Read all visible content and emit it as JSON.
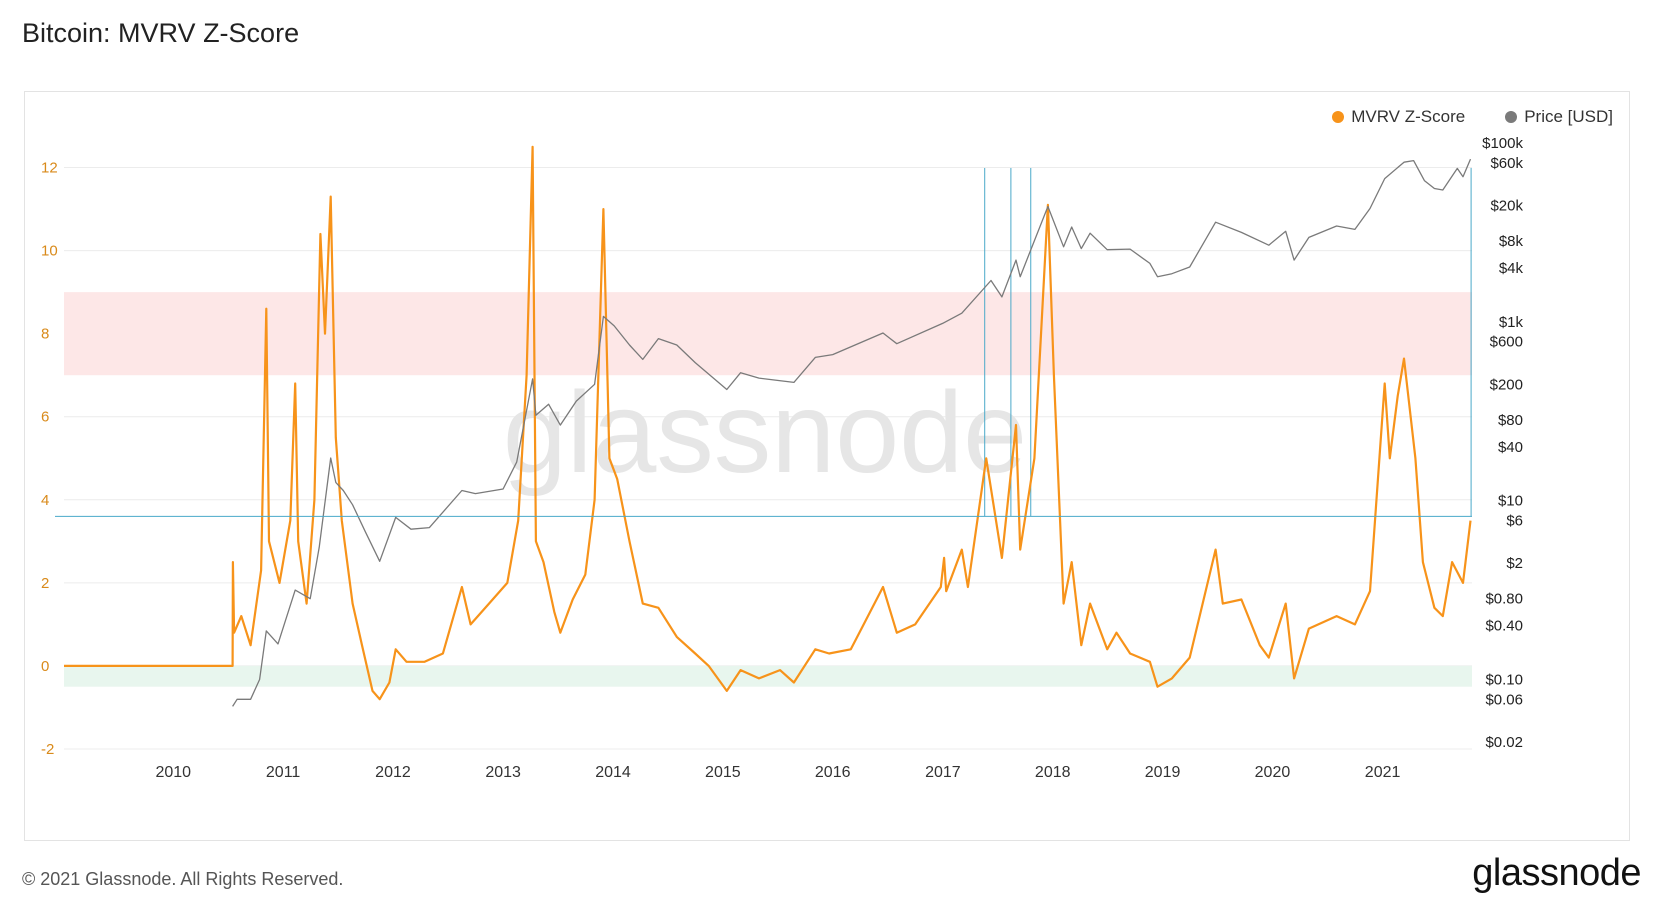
{
  "title": "Bitcoin: MVRV Z-Score",
  "footer": "© 2021 Glassnode. All Rights Reserved.",
  "brand": "glassnode",
  "watermark": "glassnode",
  "colors": {
    "zscore": "#f7931a",
    "price": "#7a7a7a",
    "upper_band": "#fde7e7",
    "lower_band": "#e8f6ee",
    "marker": "#4aa9c9",
    "grid": "#ececec"
  },
  "chart_data": {
    "type": "line",
    "title": "Bitcoin: MVRV Z-Score",
    "legend": {
      "placement": "top-right",
      "entries": [
        {
          "label": "MVRV Z-Score",
          "color": "#f7931a"
        },
        {
          "label": "Price [USD]",
          "color": "#7a7a7a"
        }
      ]
    },
    "x_axis": {
      "type": "date",
      "range": [
        "2009-01-03",
        "2021-10-25"
      ],
      "ticks": [
        "2010",
        "2011",
        "2012",
        "2013",
        "2014",
        "2015",
        "2016",
        "2017",
        "2018",
        "2019",
        "2020",
        "2021"
      ]
    },
    "y_left": {
      "ylim": [
        -2,
        13
      ],
      "ticks": [
        "-2",
        "0",
        "2",
        "4",
        "6",
        "8",
        "10",
        "12"
      ]
    },
    "y_right": {
      "scale": "log",
      "ylim": [
        0.015,
        200000
      ],
      "ticks": [
        {
          "label": "$0.02",
          "value": 0.02
        },
        {
          "label": "$0.06",
          "value": 0.06
        },
        {
          "label": "$0.10",
          "value": 0.1
        },
        {
          "label": "$0.40",
          "value": 0.4
        },
        {
          "label": "$0.80",
          "value": 0.8
        },
        {
          "label": "$2",
          "value": 2
        },
        {
          "label": "$6",
          "value": 6
        },
        {
          "label": "$10",
          "value": 10
        },
        {
          "label": "$40",
          "value": 40
        },
        {
          "label": "$80",
          "value": 80
        },
        {
          "label": "$200",
          "value": 200
        },
        {
          "label": "$600",
          "value": 600
        },
        {
          "label": "$1k",
          "value": 1000
        },
        {
          "label": "$4k",
          "value": 4000
        },
        {
          "label": "$8k",
          "value": 8000
        },
        {
          "label": "$20k",
          "value": 20000
        },
        {
          "label": "$60k",
          "value": 60000
        },
        {
          "label": "$100k",
          "value": 100000
        }
      ]
    },
    "bands": [
      {
        "from": 7,
        "to": 9,
        "zone": "upper"
      },
      {
        "from": -0.5,
        "to": 0,
        "zone": "lower"
      }
    ],
    "reference_line": {
      "y": 3.6
    },
    "marker_lines": [
      "2017-05-20",
      "2017-08-15",
      "2017-10-20",
      "2021-10-22"
    ],
    "series": [
      {
        "name": "MVRV Z-Score",
        "axis": "left",
        "color": "#f7931a",
        "points": [
          [
            "2009-01-03",
            0
          ],
          [
            "2010-07-17",
            0
          ],
          [
            "2010-07-18",
            2.5
          ],
          [
            "2010-07-22",
            0.8
          ],
          [
            "2010-08-15",
            1.2
          ],
          [
            "2010-09-15",
            0.5
          ],
          [
            "2010-10-20",
            2.3
          ],
          [
            "2010-11-06",
            8.6
          ],
          [
            "2010-11-15",
            3.0
          ],
          [
            "2010-12-20",
            2.0
          ],
          [
            "2011-01-25",
            3.5
          ],
          [
            "2011-02-10",
            6.8
          ],
          [
            "2011-02-20",
            3.0
          ],
          [
            "2011-03-20",
            1.5
          ],
          [
            "2011-04-15",
            4.0
          ],
          [
            "2011-05-05",
            10.4
          ],
          [
            "2011-05-20",
            8.0
          ],
          [
            "2011-06-08",
            11.3
          ],
          [
            "2011-06-25",
            5.5
          ],
          [
            "2011-07-15",
            3.5
          ],
          [
            "2011-08-20",
            1.5
          ],
          [
            "2011-09-20",
            0.5
          ],
          [
            "2011-10-25",
            -0.6
          ],
          [
            "2011-11-18",
            -0.8
          ],
          [
            "2011-12-20",
            -0.4
          ],
          [
            "2012-01-10",
            0.4
          ],
          [
            "2012-02-15",
            0.1
          ],
          [
            "2012-04-15",
            0.1
          ],
          [
            "2012-06-15",
            0.3
          ],
          [
            "2012-08-17",
            1.9
          ],
          [
            "2012-09-15",
            1.0
          ],
          [
            "2012-11-15",
            1.5
          ],
          [
            "2013-01-15",
            2.0
          ],
          [
            "2013-02-20",
            3.5
          ],
          [
            "2013-03-20",
            7.0
          ],
          [
            "2013-04-09",
            12.5
          ],
          [
            "2013-04-20",
            3.0
          ],
          [
            "2013-05-15",
            2.5
          ],
          [
            "2013-06-20",
            1.3
          ],
          [
            "2013-07-10",
            0.8
          ],
          [
            "2013-08-20",
            1.6
          ],
          [
            "2013-10-01",
            2.2
          ],
          [
            "2013-11-01",
            4.0
          ],
          [
            "2013-11-30",
            11.0
          ],
          [
            "2013-12-20",
            5.0
          ],
          [
            "2014-01-15",
            4.5
          ],
          [
            "2014-02-25",
            3.0
          ],
          [
            "2014-04-10",
            1.5
          ],
          [
            "2014-06-01",
            1.4
          ],
          [
            "2014-08-01",
            0.7
          ],
          [
            "2014-10-01",
            0.3
          ],
          [
            "2014-11-15",
            0.0
          ],
          [
            "2015-01-14",
            -0.6
          ],
          [
            "2015-03-01",
            -0.1
          ],
          [
            "2015-05-01",
            -0.3
          ],
          [
            "2015-07-10",
            -0.1
          ],
          [
            "2015-08-25",
            -0.4
          ],
          [
            "2015-11-04",
            0.4
          ],
          [
            "2015-12-20",
            0.3
          ],
          [
            "2016-03-01",
            0.4
          ],
          [
            "2016-06-16",
            1.9
          ],
          [
            "2016-08-01",
            0.8
          ],
          [
            "2016-10-01",
            1.0
          ],
          [
            "2016-12-25",
            1.9
          ],
          [
            "2017-01-05",
            2.6
          ],
          [
            "2017-01-12",
            1.8
          ],
          [
            "2017-03-05",
            2.8
          ],
          [
            "2017-03-25",
            1.9
          ],
          [
            "2017-05-25",
            5.0
          ],
          [
            "2017-07-16",
            2.6
          ],
          [
            "2017-09-01",
            5.8
          ],
          [
            "2017-09-15",
            2.8
          ],
          [
            "2017-11-01",
            5.0
          ],
          [
            "2017-12-16",
            11.1
          ],
          [
            "2018-01-05",
            7.0
          ],
          [
            "2018-02-06",
            1.5
          ],
          [
            "2018-03-05",
            2.5
          ],
          [
            "2018-04-06",
            0.5
          ],
          [
            "2018-05-05",
            1.5
          ],
          [
            "2018-07-01",
            0.4
          ],
          [
            "2018-08-01",
            0.8
          ],
          [
            "2018-09-15",
            0.3
          ],
          [
            "2018-11-20",
            0.1
          ],
          [
            "2018-12-15",
            -0.5
          ],
          [
            "2019-02-01",
            -0.3
          ],
          [
            "2019-04-01",
            0.2
          ],
          [
            "2019-06-26",
            2.8
          ],
          [
            "2019-07-20",
            1.5
          ],
          [
            "2019-09-20",
            1.6
          ],
          [
            "2019-11-20",
            0.5
          ],
          [
            "2019-12-20",
            0.2
          ],
          [
            "2020-02-14",
            1.5
          ],
          [
            "2020-03-13",
            -0.3
          ],
          [
            "2020-05-01",
            0.9
          ],
          [
            "2020-08-01",
            1.2
          ],
          [
            "2020-10-01",
            1.0
          ],
          [
            "2020-11-20",
            1.8
          ],
          [
            "2021-01-08",
            6.8
          ],
          [
            "2021-01-25",
            5.0
          ],
          [
            "2021-02-20",
            6.5
          ],
          [
            "2021-03-13",
            7.4
          ],
          [
            "2021-04-20",
            5.0
          ],
          [
            "2021-05-15",
            2.5
          ],
          [
            "2021-06-22",
            1.4
          ],
          [
            "2021-07-20",
            1.2
          ],
          [
            "2021-08-20",
            2.5
          ],
          [
            "2021-09-25",
            2.0
          ],
          [
            "2021-10-20",
            3.5
          ]
        ]
      },
      {
        "name": "Price [USD]",
        "axis": "right",
        "color": "#7a7a7a",
        "points": [
          [
            "2010-07-17",
            0.05
          ],
          [
            "2010-08-01",
            0.06
          ],
          [
            "2010-09-15",
            0.06
          ],
          [
            "2010-10-15",
            0.1
          ],
          [
            "2010-11-06",
            0.35
          ],
          [
            "2010-12-15",
            0.25
          ],
          [
            "2011-02-10",
            1.0
          ],
          [
            "2011-04-01",
            0.8
          ],
          [
            "2011-05-01",
            3.0
          ],
          [
            "2011-06-08",
            30
          ],
          [
            "2011-06-25",
            16
          ],
          [
            "2011-07-20",
            13
          ],
          [
            "2011-08-20",
            9
          ],
          [
            "2011-10-01",
            4.5
          ],
          [
            "2011-11-18",
            2.1
          ],
          [
            "2012-01-10",
            6.5
          ],
          [
            "2012-03-01",
            4.8
          ],
          [
            "2012-05-01",
            5.0
          ],
          [
            "2012-08-17",
            13
          ],
          [
            "2012-10-01",
            12
          ],
          [
            "2013-01-01",
            13.5
          ],
          [
            "2013-02-15",
            27
          ],
          [
            "2013-04-09",
            230
          ],
          [
            "2013-04-20",
            90
          ],
          [
            "2013-06-01",
            120
          ],
          [
            "2013-07-10",
            70
          ],
          [
            "2013-09-01",
            130
          ],
          [
            "2013-11-01",
            200
          ],
          [
            "2013-11-30",
            1150
          ],
          [
            "2014-01-05",
            900
          ],
          [
            "2014-02-25",
            550
          ],
          [
            "2014-04-10",
            380
          ],
          [
            "2014-06-01",
            650
          ],
          [
            "2014-08-01",
            550
          ],
          [
            "2014-10-01",
            350
          ],
          [
            "2015-01-14",
            175
          ],
          [
            "2015-03-01",
            270
          ],
          [
            "2015-05-01",
            235
          ],
          [
            "2015-08-25",
            210
          ],
          [
            "2015-11-04",
            400
          ],
          [
            "2016-01-01",
            430
          ],
          [
            "2016-06-16",
            750
          ],
          [
            "2016-08-01",
            570
          ],
          [
            "2016-12-31",
            960
          ],
          [
            "2017-03-05",
            1250
          ],
          [
            "2017-06-10",
            2900
          ],
          [
            "2017-07-16",
            1900
          ],
          [
            "2017-09-01",
            4900
          ],
          [
            "2017-09-15",
            3200
          ],
          [
            "2017-12-16",
            19500
          ],
          [
            "2018-02-06",
            6900
          ],
          [
            "2018-03-05",
            11500
          ],
          [
            "2018-04-06",
            6600
          ],
          [
            "2018-05-05",
            9800
          ],
          [
            "2018-07-01",
            6400
          ],
          [
            "2018-09-15",
            6500
          ],
          [
            "2018-11-20",
            4500
          ],
          [
            "2018-12-15",
            3200
          ],
          [
            "2019-02-01",
            3450
          ],
          [
            "2019-04-01",
            4100
          ],
          [
            "2019-06-26",
            13000
          ],
          [
            "2019-09-20",
            10000
          ],
          [
            "2019-12-20",
            7200
          ],
          [
            "2020-02-14",
            10300
          ],
          [
            "2020-03-13",
            4900
          ],
          [
            "2020-05-01",
            8800
          ],
          [
            "2020-08-01",
            11800
          ],
          [
            "2020-10-01",
            10800
          ],
          [
            "2020-11-20",
            18500
          ],
          [
            "2021-01-08",
            40000
          ],
          [
            "2021-03-13",
            61000
          ],
          [
            "2021-04-14",
            63500
          ],
          [
            "2021-05-20",
            38000
          ],
          [
            "2021-06-22",
            31000
          ],
          [
            "2021-07-20",
            29800
          ],
          [
            "2021-09-06",
            52000
          ],
          [
            "2021-09-25",
            42000
          ],
          [
            "2021-10-20",
            66000
          ]
        ]
      }
    ]
  }
}
